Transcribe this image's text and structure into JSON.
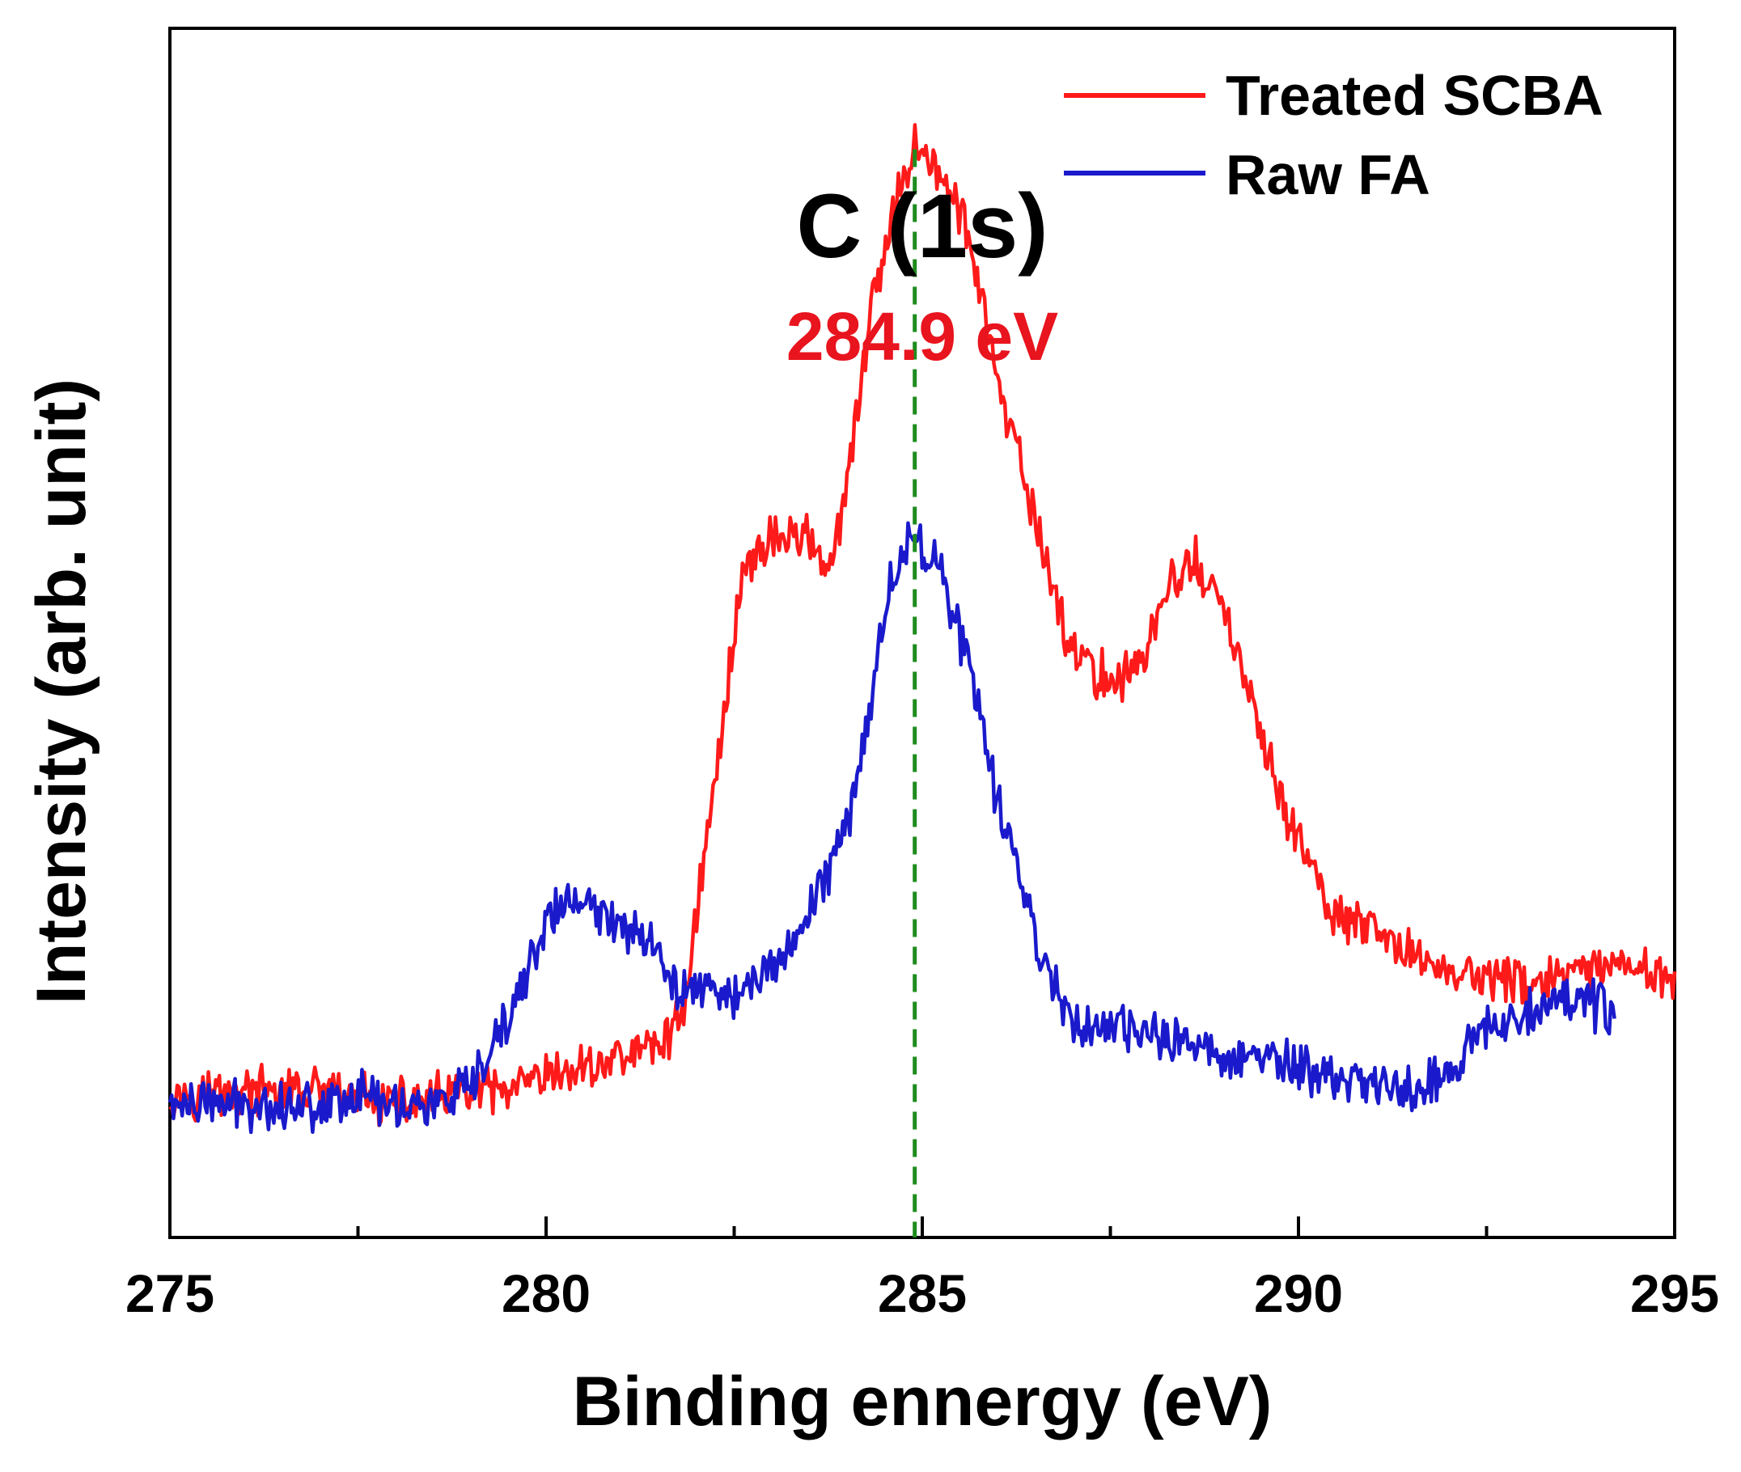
{
  "chart_data": {
    "type": "line",
    "title": "",
    "xlabel": "Binding ennergy (eV)",
    "ylabel": "Intensity (arb. unit)",
    "xlim": [
      275,
      295
    ],
    "ylim": [
      0,
      100
    ],
    "y_ticks_shown": false,
    "x_ticks": [
      275,
      280,
      285,
      290,
      295
    ],
    "x_tick_labels": [
      "275",
      "280",
      "285",
      "290",
      "295"
    ],
    "legend_position": "top-right",
    "annotations": {
      "element_label": "C (1s)",
      "peak_label": "284.9 eV",
      "peak_line_x": 284.9,
      "peak_line_color": "#1e8c1e",
      "peak_label_color": "#e8141e"
    },
    "series": [
      {
        "name": "Treated SCBA",
        "color": "#ff1a1a",
        "x": [
          275.0,
          276.0,
          277.0,
          278.0,
          279.0,
          279.5,
          280.0,
          280.5,
          281.0,
          281.5,
          281.8,
          282.0,
          282.3,
          282.6,
          283.0,
          283.5,
          283.8,
          284.0,
          284.3,
          284.6,
          284.9,
          285.2,
          285.5,
          285.8,
          286.0,
          286.3,
          286.6,
          286.9,
          287.2,
          287.5,
          287.8,
          288.0,
          288.3,
          288.6,
          289.0,
          289.3,
          289.6,
          290.0,
          290.4,
          291.0,
          292.0,
          293.0,
          294.0,
          295.0
        ],
        "y": [
          12,
          12,
          12,
          11,
          12,
          12,
          13,
          14,
          15,
          16,
          18,
          27,
          40,
          55,
          58,
          58,
          55,
          62,
          76,
          84,
          91,
          88,
          85,
          78,
          70,
          64,
          57,
          50,
          47,
          46,
          47,
          49,
          54,
          56,
          52,
          46,
          39,
          33,
          27,
          25,
          22,
          21,
          22,
          22
        ]
      },
      {
        "name": "Raw FA",
        "color": "#1a1acc",
        "x": [
          275.0,
          276.0,
          277.0,
          277.5,
          278.0,
          278.5,
          279.0,
          279.5,
          280.0,
          280.3,
          280.6,
          281.0,
          281.4,
          281.6,
          282.0,
          282.5,
          283.0,
          283.5,
          284.0,
          284.3,
          284.6,
          284.9,
          285.2,
          285.5,
          285.8,
          286.0,
          286.3,
          286.6,
          287.0,
          287.5,
          288.0,
          288.5,
          289.0,
          289.5,
          290.0,
          290.5,
          291.0,
          291.5,
          292.0,
          292.5,
          293.0,
          293.5,
          294.0,
          294.2
        ],
        "y": [
          11,
          11,
          11,
          12,
          11,
          11,
          12,
          18,
          26,
          28,
          27,
          26,
          25,
          21,
          21,
          20,
          22,
          27,
          34,
          44,
          55,
          58,
          56,
          50,
          42,
          36,
          30,
          23,
          18,
          17,
          17,
          16,
          15,
          15,
          14,
          13,
          13,
          12,
          14,
          17,
          19,
          20,
          19,
          18
        ]
      }
    ]
  }
}
